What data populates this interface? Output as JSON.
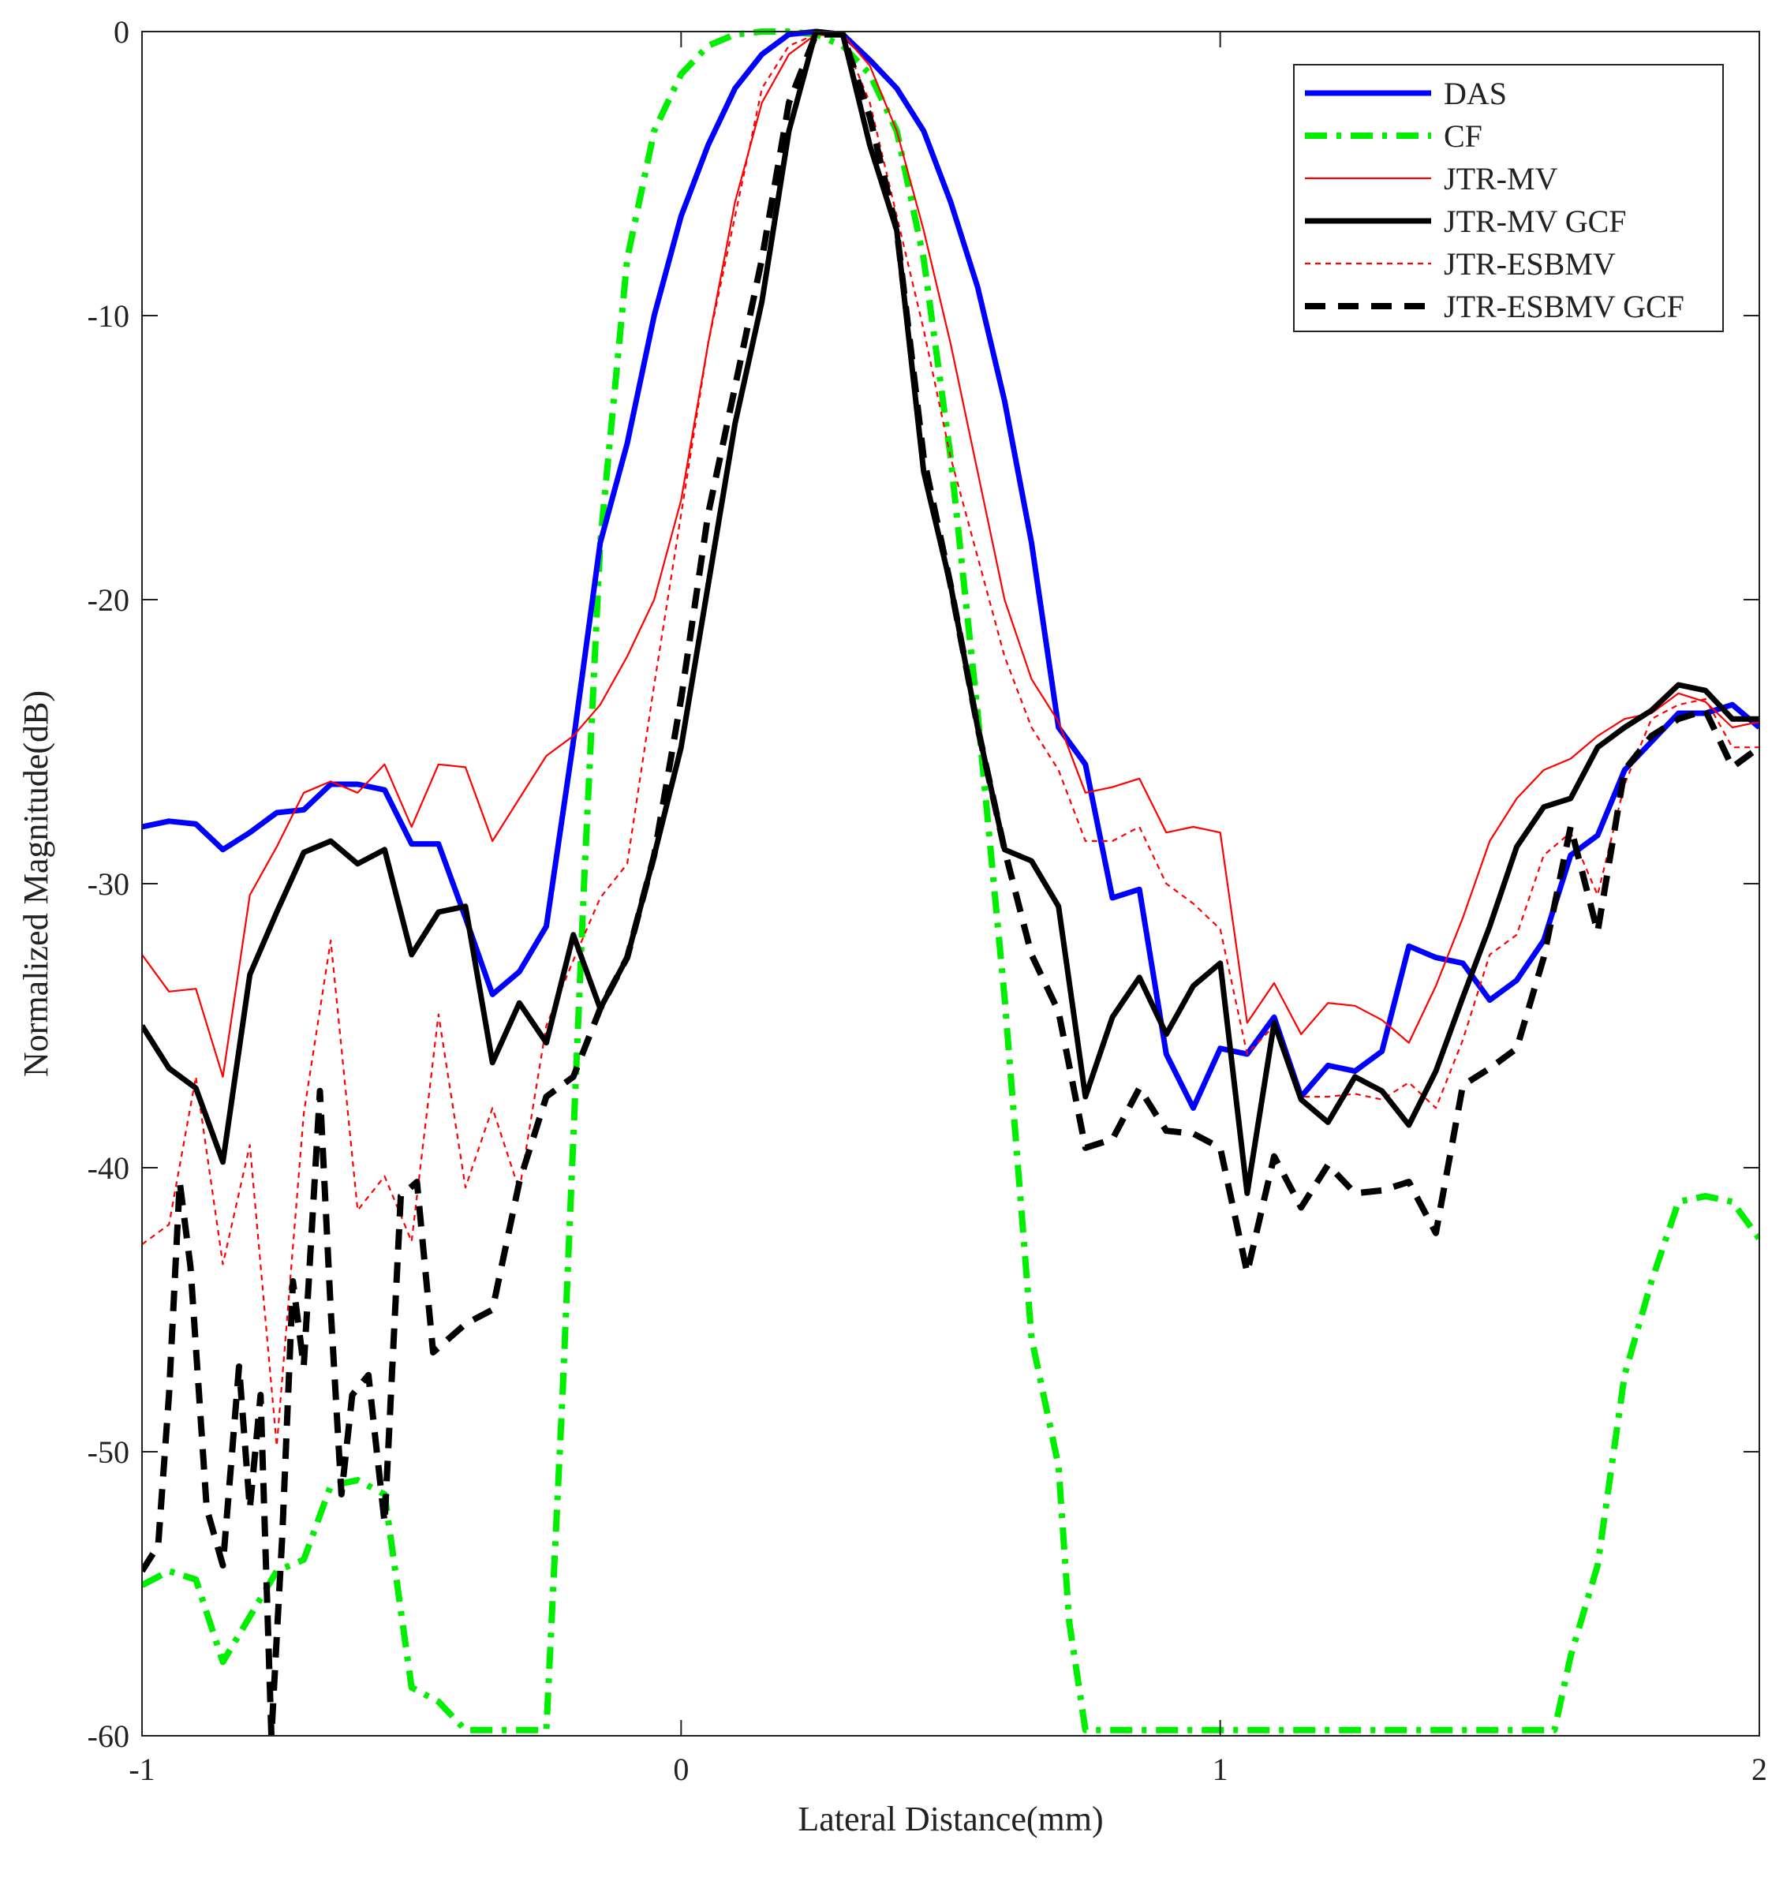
{
  "chart_data": {
    "type": "line",
    "xlabel": "Lateral Distance(mm)",
    "ylabel": "Normalized Magnitude(dB)",
    "xlim": [
      -1,
      2
    ],
    "ylim": [
      -60,
      0
    ],
    "xticks": [
      -1,
      0,
      1,
      2
    ],
    "yticks": [
      0,
      -10,
      -20,
      -30,
      -40,
      -50,
      -60
    ],
    "grid": false,
    "legend_position": "top-right",
    "series": [
      {
        "name": "DAS",
        "color": "#0000ff",
        "style": "solid-thick",
        "x": [
          -1.0,
          -0.95,
          -0.9,
          -0.85,
          -0.8,
          -0.75,
          -0.7,
          -0.65,
          -0.6,
          -0.55,
          -0.5,
          -0.45,
          -0.4,
          -0.35,
          -0.3,
          -0.25,
          -0.2,
          -0.15,
          -0.1,
          -0.05,
          0.0,
          0.05,
          0.1,
          0.15,
          0.2,
          0.25,
          0.3,
          0.35,
          0.4,
          0.45,
          0.5,
          0.55,
          0.6,
          0.65,
          0.7,
          0.75,
          0.8,
          0.85,
          0.9,
          0.95,
          1.0,
          1.05,
          1.1,
          1.15,
          1.2,
          1.25,
          1.3,
          1.35,
          1.4,
          1.45,
          1.5,
          1.55,
          1.6,
          1.65,
          1.7,
          1.75,
          1.8,
          1.85,
          1.9,
          1.95,
          2.0
        ],
        "y": [
          -28,
          -27.8,
          -27.9,
          -28.8,
          -28.2,
          -27.5,
          -27.4,
          -26.5,
          -26.5,
          -26.7,
          -28.6,
          -28.6,
          -31.2,
          -33.9,
          -33.1,
          -31.5,
          -25,
          -18,
          -14.5,
          -10,
          -6.5,
          -4,
          -2,
          -0.8,
          -0.1,
          0,
          -0.1,
          -1,
          -2,
          -3.5,
          -6,
          -9,
          -13,
          -18,
          -24.5,
          -25.8,
          -30.5,
          -30.2,
          -36,
          -37.9,
          -35.8,
          -36,
          -34.7,
          -37.5,
          -36.4,
          -36.6,
          -35.9,
          -32.2,
          -32.6,
          -32.8,
          -34.1,
          -33.4,
          -32,
          -29,
          -28.3,
          -26,
          -25,
          -24,
          -24,
          -23.7,
          -24.5
        ]
      },
      {
        "name": "CF",
        "color": "#00ee00",
        "style": "dash-dot-thick",
        "x": [
          -1.0,
          -0.95,
          -0.9,
          -0.85,
          -0.8,
          -0.75,
          -0.7,
          -0.65,
          -0.6,
          -0.55,
          -0.5,
          -0.45,
          -0.4,
          -0.35,
          -0.3,
          -0.25,
          -0.22,
          -0.18,
          -0.15,
          -0.1,
          -0.05,
          0.0,
          0.05,
          0.1,
          0.15,
          0.2,
          0.25,
          0.3,
          0.35,
          0.4,
          0.45,
          0.5,
          0.55,
          0.6,
          0.65,
          0.7,
          0.72,
          0.75,
          0.78,
          0.8,
          0.82,
          0.9,
          1.0,
          1.1,
          1.2,
          1.3,
          1.4,
          1.5,
          1.6,
          1.62,
          1.65,
          1.7,
          1.75,
          1.8,
          1.85,
          1.9,
          1.95,
          2.0
        ],
        "y": [
          -54.7,
          -54.2,
          -54.5,
          -57.4,
          -55.8,
          -54.2,
          -53.8,
          -51.2,
          -51.0,
          -51.5,
          -58.3,
          -58.8,
          -59.8,
          -59.8,
          -59.8,
          -59.8,
          -48,
          -30,
          -18,
          -8,
          -3.5,
          -1.5,
          -0.5,
          -0.1,
          0,
          0,
          -0.1,
          -0.5,
          -1.5,
          -3.5,
          -8,
          -15,
          -24,
          -34,
          -46,
          -50.5,
          -56,
          -59.8,
          -59.8,
          -59.8,
          -59.8,
          -59.8,
          -59.8,
          -59.8,
          -59.8,
          -59.8,
          -59.8,
          -59.8,
          -59.8,
          -59.8,
          -57.2,
          -54,
          -47.3,
          -44,
          -41.2,
          -41,
          -41.2,
          -42.5
        ]
      },
      {
        "name": "JTR-MV",
        "color": "#ff0000",
        "style": "solid-thin",
        "x": [
          -1.0,
          -0.95,
          -0.9,
          -0.85,
          -0.8,
          -0.75,
          -0.7,
          -0.65,
          -0.6,
          -0.55,
          -0.5,
          -0.45,
          -0.4,
          -0.35,
          -0.3,
          -0.25,
          -0.2,
          -0.15,
          -0.1,
          -0.05,
          0.0,
          0.05,
          0.1,
          0.15,
          0.2,
          0.25,
          0.3,
          0.35,
          0.4,
          0.45,
          0.5,
          0.55,
          0.6,
          0.65,
          0.7,
          0.75,
          0.8,
          0.85,
          0.9,
          0.95,
          1.0,
          1.05,
          1.1,
          1.15,
          1.2,
          1.25,
          1.3,
          1.35,
          1.4,
          1.45,
          1.5,
          1.55,
          1.6,
          1.65,
          1.7,
          1.75,
          1.8,
          1.85,
          1.9,
          1.95,
          2.0
        ],
        "y": [
          -32.5,
          -33.8,
          -33.7,
          -36.8,
          -30.4,
          -28.7,
          -26.8,
          -26.4,
          -26.8,
          -25.8,
          -28,
          -25.8,
          -25.9,
          -28.5,
          -27,
          -25.5,
          -24.8,
          -23.7,
          -22,
          -20,
          -16.5,
          -11,
          -6,
          -2.5,
          -0.8,
          -0.1,
          -0.1,
          -1.2,
          -3.5,
          -7,
          -11,
          -15.5,
          -20,
          -22.8,
          -24.3,
          -26.8,
          -26.6,
          -26.3,
          -28.2,
          -28,
          -28.2,
          -34.9,
          -33.5,
          -35.3,
          -34.2,
          -34.3,
          -34.8,
          -35.6,
          -33.6,
          -31.2,
          -28.5,
          -27,
          -26,
          -25.6,
          -24.8,
          -24.2,
          -24,
          -23.3,
          -23.6,
          -24.5,
          -24.3
        ]
      },
      {
        "name": "JTR-MV GCF",
        "color": "#000000",
        "style": "solid-thick",
        "x": [
          -1.0,
          -0.95,
          -0.9,
          -0.85,
          -0.8,
          -0.75,
          -0.7,
          -0.65,
          -0.6,
          -0.55,
          -0.5,
          -0.45,
          -0.4,
          -0.35,
          -0.3,
          -0.25,
          -0.2,
          -0.15,
          -0.1,
          -0.05,
          0.0,
          0.05,
          0.1,
          0.15,
          0.2,
          0.25,
          0.3,
          0.35,
          0.4,
          0.45,
          0.5,
          0.55,
          0.6,
          0.65,
          0.7,
          0.75,
          0.8,
          0.85,
          0.9,
          0.95,
          1.0,
          1.05,
          1.1,
          1.15,
          1.2,
          1.25,
          1.3,
          1.35,
          1.4,
          1.45,
          1.5,
          1.55,
          1.6,
          1.65,
          1.7,
          1.75,
          1.8,
          1.85,
          1.9,
          1.95,
          2.0
        ],
        "y": [
          -35,
          -36.5,
          -37.2,
          -39.8,
          -33.2,
          -31,
          -28.9,
          -28.5,
          -29.3,
          -28.8,
          -32.5,
          -31,
          -30.8,
          -36.3,
          -34.2,
          -35.6,
          -31.8,
          -34.4,
          -32.6,
          -29,
          -25.2,
          -19.5,
          -13.8,
          -9.5,
          -3.5,
          0,
          -0.1,
          -4,
          -7,
          -15.5,
          -19.5,
          -24.5,
          -28.8,
          -29.2,
          -30.8,
          -37.5,
          -34.7,
          -33.3,
          -35.3,
          -33.6,
          -32.8,
          -40.9,
          -34.9,
          -37.6,
          -38.4,
          -36.8,
          -37.3,
          -38.5,
          -36.6,
          -34,
          -31.5,
          -28.7,
          -27.3,
          -27,
          -25.2,
          -24.5,
          -23.9,
          -23,
          -23.2,
          -24.2,
          -24.2
        ]
      },
      {
        "name": "JTR-ESBMV",
        "color": "#ff0000",
        "style": "dotted-thin",
        "x": [
          -1.0,
          -0.95,
          -0.9,
          -0.85,
          -0.8,
          -0.75,
          -0.7,
          -0.65,
          -0.6,
          -0.55,
          -0.5,
          -0.45,
          -0.4,
          -0.35,
          -0.3,
          -0.25,
          -0.2,
          -0.15,
          -0.1,
          -0.05,
          0.0,
          0.05,
          0.1,
          0.15,
          0.2,
          0.25,
          0.3,
          0.35,
          0.4,
          0.45,
          0.5,
          0.55,
          0.6,
          0.65,
          0.7,
          0.75,
          0.8,
          0.85,
          0.9,
          0.95,
          1.0,
          1.05,
          1.1,
          1.15,
          1.2,
          1.25,
          1.3,
          1.35,
          1.4,
          1.45,
          1.5,
          1.55,
          1.6,
          1.65,
          1.7,
          1.75,
          1.8,
          1.85,
          1.9,
          1.95,
          2.0
        ],
        "y": [
          -42.7,
          -42,
          -36.8,
          -43.4,
          -39.2,
          -49.8,
          -38.1,
          -32,
          -41.5,
          -40.3,
          -42.6,
          -34.6,
          -40.7,
          -37.9,
          -40.8,
          -35,
          -32.7,
          -30.5,
          -29.3,
          -23,
          -17,
          -11,
          -6.5,
          -2,
          -0.5,
          -0.1,
          -0.2,
          -2.5,
          -6.5,
          -10.5,
          -15,
          -18.5,
          -22,
          -24.5,
          -26,
          -28.5,
          -28.5,
          -28,
          -30,
          -30.7,
          -31.6,
          -36,
          -35,
          -37.5,
          -37.5,
          -37.4,
          -37.6,
          -37,
          -37.9,
          -35.5,
          -32.5,
          -31.8,
          -29,
          -28.2,
          -30.4,
          -26.5,
          -24.2,
          -23.7,
          -23.5,
          -25.2,
          -25.2
        ]
      },
      {
        "name": "JTR-ESBMV GCF",
        "color": "#000000",
        "style": "dashed-thick",
        "x": [
          -1.0,
          -0.97,
          -0.95,
          -0.93,
          -0.91,
          -0.88,
          -0.85,
          -0.82,
          -0.8,
          -0.78,
          -0.76,
          -0.74,
          -0.72,
          -0.7,
          -0.67,
          -0.65,
          -0.63,
          -0.61,
          -0.58,
          -0.55,
          -0.52,
          -0.49,
          -0.46,
          -0.43,
          -0.4,
          -0.35,
          -0.3,
          -0.25,
          -0.2,
          -0.15,
          -0.1,
          -0.05,
          0.0,
          0.05,
          0.1,
          0.15,
          0.2,
          0.25,
          0.3,
          0.35,
          0.4,
          0.45,
          0.5,
          0.55,
          0.6,
          0.65,
          0.7,
          0.75,
          0.8,
          0.85,
          0.9,
          0.95,
          1.0,
          1.05,
          1.1,
          1.15,
          1.2,
          1.25,
          1.3,
          1.35,
          1.4,
          1.45,
          1.5,
          1.55,
          1.6,
          1.65,
          1.7,
          1.75,
          1.8,
          1.85,
          1.9,
          1.95,
          2.0
        ],
        "y": [
          -54.2,
          -53.3,
          -48,
          -40.5,
          -43.5,
          -52,
          -54,
          -47,
          -52,
          -48,
          -60,
          -53,
          -44,
          -47,
          -37.3,
          -45,
          -51.5,
          -48,
          -47.3,
          -52.5,
          -41,
          -40.5,
          -46.5,
          -46,
          -45.5,
          -45,
          -40.5,
          -37.5,
          -36.8,
          -34.4,
          -32.6,
          -29,
          -23.5,
          -17,
          -12.5,
          -8,
          -2.5,
          -0.1,
          -0.1,
          -3,
          -7,
          -15,
          -19.5,
          -24.5,
          -28.8,
          -32.5,
          -34.5,
          -39.3,
          -39,
          -37.2,
          -38.7,
          -38.8,
          -39.3,
          -43.7,
          -39.6,
          -41.4,
          -39.9,
          -40.9,
          -40.8,
          -40.5,
          -42.3,
          -37.1,
          -36.5,
          -35.8,
          -32.6,
          -28,
          -31.7,
          -26,
          -24.8,
          -24.2,
          -23.9,
          -25.9,
          -25.2
        ]
      }
    ]
  }
}
